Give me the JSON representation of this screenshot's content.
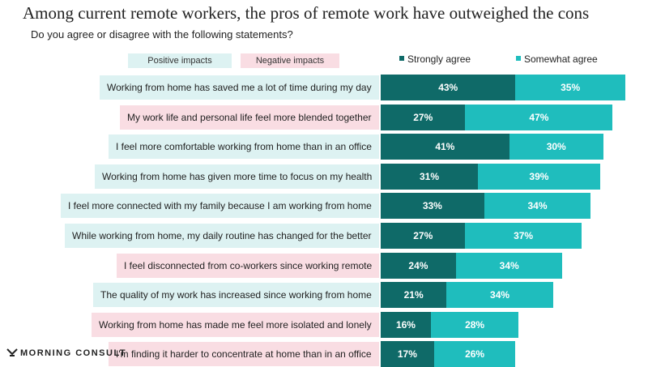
{
  "title": "Among current remote workers, the pros of remote work have outweighed the cons",
  "subtitle": "Do you agree or disagree with the following statements?",
  "key": {
    "positive": "Positive impacts",
    "negative": "Negative impacts"
  },
  "brand": "MORNING CONSULT",
  "colors": {
    "strongly_agree": "#0f6a68",
    "somewhat_agree": "#1fbdbd",
    "positive_bg": "#ddf2f2",
    "negative_bg": "#f9dde3"
  },
  "chart_data": {
    "type": "bar",
    "orientation": "horizontal",
    "stacked": true,
    "categories": [
      "Working from home has saved me a lot of time during my day",
      "My work life and personal life feel more blended together",
      "I feel more comfortable working from home than in an office",
      "Working from home has given more time to focus on my health",
      "I feel more connected with my family because I am working from home",
      "While working from home, my daily routine has changed for the better",
      "I feel disconnected from co-workers since working remote",
      "The quality of my work has increased since working from home",
      "Working from home has made me feel more isolated and lonely",
      "I'm finding it harder to concentrate at home than in an office"
    ],
    "impact": [
      "positive",
      "negative",
      "positive",
      "positive",
      "positive",
      "positive",
      "negative",
      "positive",
      "negative",
      "negative"
    ],
    "series": [
      {
        "name": "Strongly agree",
        "values": [
          43,
          27,
          41,
          31,
          33,
          27,
          24,
          21,
          16,
          17
        ]
      },
      {
        "name": "Somewhat agree",
        "values": [
          35,
          47,
          30,
          39,
          34,
          37,
          34,
          34,
          28,
          26
        ]
      }
    ],
    "value_suffix": "%",
    "legend_position": "top-right"
  }
}
